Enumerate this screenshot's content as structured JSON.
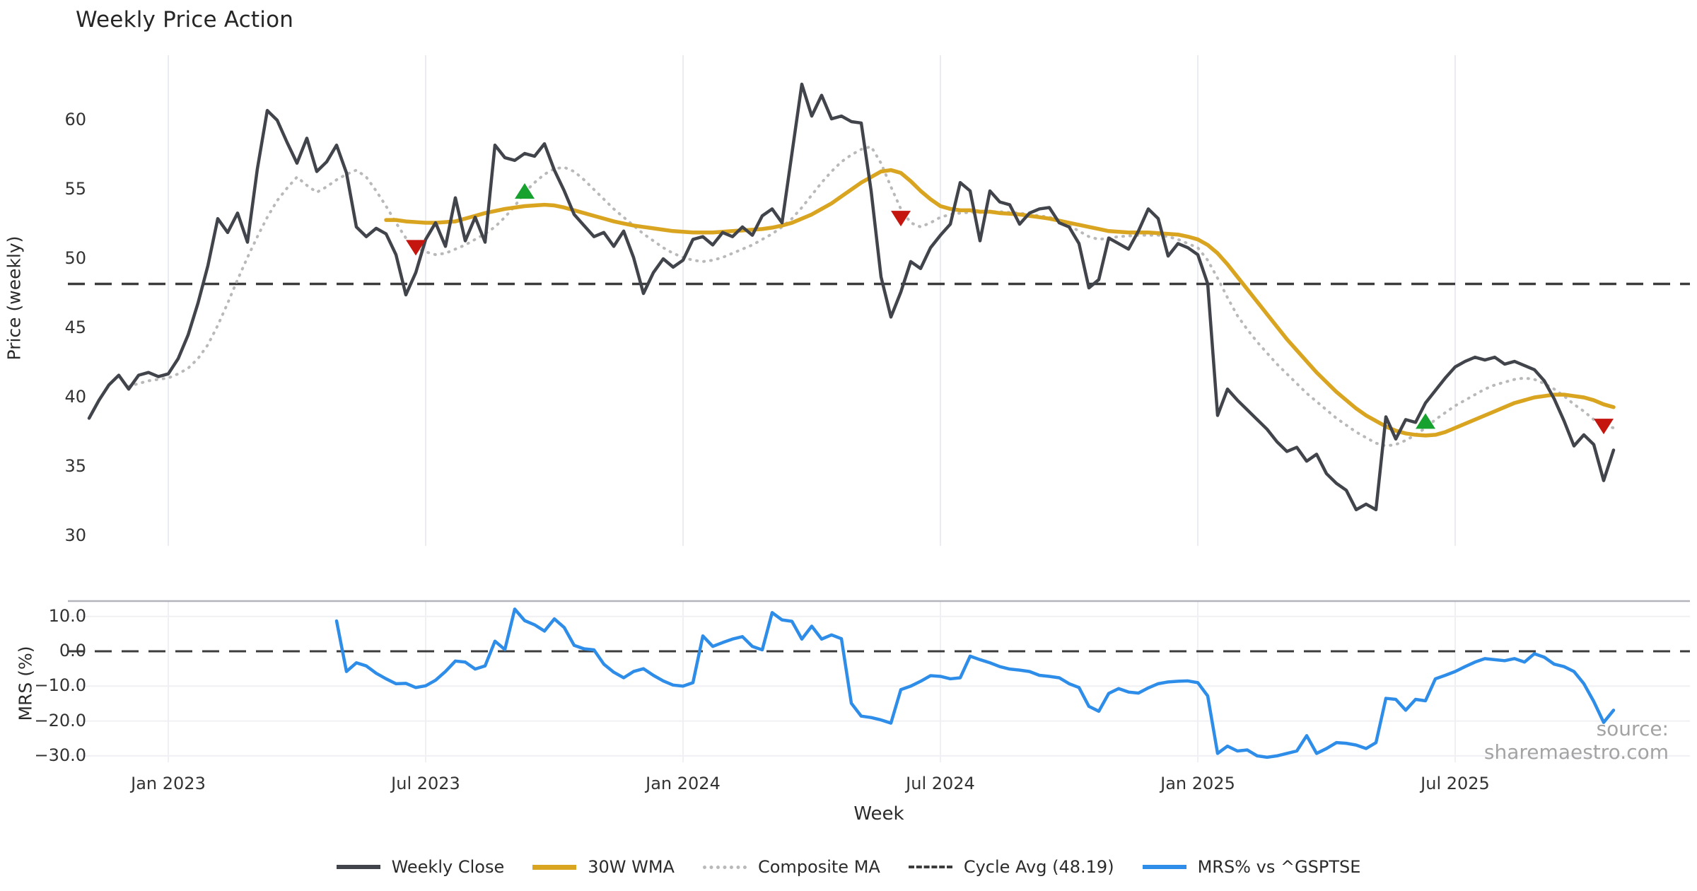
{
  "title": "Weekly Price Action",
  "source_text": "source: sharemaestro.com",
  "colors": {
    "weekly_close": "#41444a",
    "wma30": "#d9a521",
    "composite": "#b9b9b9",
    "cycle_avg": "#3c3c3c",
    "mrs": "#2d8de8",
    "buy_marker": "#17a12e",
    "sell_marker": "#c4150f",
    "grid_vertical": "#ebebf2",
    "grid_horizontal_lower": "#f0f0f4",
    "lower_top_spine": "#b4b4bc",
    "text": "#2b2b2b"
  },
  "legend": {
    "items": [
      {
        "label": "Weekly Close",
        "swatch": "solid-dark"
      },
      {
        "label": "30W WMA",
        "swatch": "solid-gold"
      },
      {
        "label": "Composite MA",
        "swatch": "dotted-gray"
      },
      {
        "label": "Cycle Avg (48.19)",
        "swatch": "dashed-dark"
      },
      {
        "label": "MRS% vs ^GSPTSE",
        "swatch": "solid-blue"
      }
    ]
  },
  "chart_data": [
    {
      "type": "line",
      "panel": "price",
      "title": "Weekly Price Action",
      "xlabel": "Week",
      "ylabel": "Price (weekly)",
      "x_unit": "week_index_from_2022-11-07",
      "ylim": [
        29,
        65
      ],
      "yticks": [
        {
          "v": 30,
          "label": "30"
        },
        {
          "v": 35,
          "label": "35"
        },
        {
          "v": 40,
          "label": "40"
        },
        {
          "v": 45,
          "label": "45"
        },
        {
          "v": 50,
          "label": "50"
        },
        {
          "v": 55,
          "label": "55"
        },
        {
          "v": 60,
          "label": "60"
        }
      ],
      "x_ticks": [
        {
          "week": 8,
          "label": "Jan 2023"
        },
        {
          "week": 34,
          "label": "Jul 2023"
        },
        {
          "week": 60,
          "label": "Jan 2024"
        },
        {
          "week": 86,
          "label": "Jul 2024"
        },
        {
          "week": 112,
          "label": "Jan 2025"
        },
        {
          "week": 138,
          "label": "Jul 2025"
        }
      ],
      "cycle_avg": 48.19,
      "series": [
        {
          "name": "Weekly Close",
          "start_week": 0,
          "values": [
            38.5,
            39.8,
            40.9,
            41.6,
            40.6,
            41.6,
            41.8,
            41.5,
            41.7,
            42.8,
            44.5,
            46.8,
            49.5,
            52.9,
            51.9,
            53.3,
            51.2,
            56.5,
            60.7,
            60.0,
            58.4,
            56.9,
            58.7,
            56.3,
            57.0,
            58.2,
            56.2,
            52.3,
            51.6,
            52.2,
            51.8,
            50.3,
            47.4,
            49.0,
            51.4,
            52.6,
            50.9,
            54.4,
            51.3,
            53.0,
            51.2,
            58.2,
            57.3,
            57.1,
            57.6,
            57.4,
            58.3,
            56.4,
            54.9,
            53.2,
            52.4,
            51.6,
            51.9,
            50.9,
            52.0,
            50.1,
            47.5,
            49.0,
            50.0,
            49.4,
            49.9,
            51.4,
            51.6,
            51.0,
            51.9,
            51.6,
            52.3,
            51.7,
            53.1,
            53.6,
            52.6,
            57.6,
            62.6,
            60.3,
            61.8,
            60.1,
            60.3,
            59.9,
            59.8,
            54.9,
            48.7,
            45.8,
            47.6,
            49.8,
            49.3,
            50.8,
            51.7,
            52.5,
            55.5,
            54.9,
            51.3,
            54.9,
            54.1,
            53.9,
            52.5,
            53.3,
            53.6,
            53.7,
            52.6,
            52.3,
            51.1,
            47.9,
            48.5,
            51.5,
            51.1,
            50.7,
            52.0,
            53.6,
            52.9,
            50.2,
            51.1,
            50.8,
            50.3,
            48.2,
            38.7,
            40.6,
            39.8,
            39.1,
            38.4,
            37.7,
            36.8,
            36.1,
            36.4,
            35.4,
            35.9,
            34.5,
            33.8,
            33.3,
            31.9,
            32.3,
            31.9,
            38.6,
            37.0,
            38.4,
            38.2,
            39.6,
            40.5,
            41.4,
            42.2,
            42.6,
            42.9,
            42.7,
            42.9,
            42.4,
            42.6,
            42.3,
            42.0,
            41.2,
            39.9,
            38.3,
            36.5,
            37.3,
            36.6,
            34.0,
            36.2
          ]
        },
        {
          "name": "30W WMA",
          "start_week": 30,
          "values": [
            52.8,
            52.8,
            52.7,
            52.65,
            52.6,
            52.6,
            52.65,
            52.7,
            52.9,
            53.1,
            53.3,
            53.45,
            53.6,
            53.7,
            53.8,
            53.85,
            53.9,
            53.85,
            53.7,
            53.5,
            53.3,
            53.1,
            52.9,
            52.7,
            52.55,
            52.4,
            52.3,
            52.2,
            52.1,
            52.0,
            51.95,
            51.9,
            51.9,
            51.9,
            51.95,
            52.0,
            52.05,
            52.1,
            52.15,
            52.25,
            52.4,
            52.6,
            52.9,
            53.2,
            53.6,
            54.0,
            54.5,
            55.0,
            55.5,
            55.9,
            56.3,
            56.4,
            56.2,
            55.6,
            54.9,
            54.3,
            53.8,
            53.6,
            53.5,
            53.5,
            53.4,
            53.4,
            53.3,
            53.25,
            53.2,
            53.1,
            53.0,
            52.9,
            52.75,
            52.6,
            52.45,
            52.3,
            52.15,
            52.0,
            51.95,
            51.9,
            51.9,
            51.9,
            51.85,
            51.8,
            51.75,
            51.6,
            51.4,
            51.0,
            50.4,
            49.6,
            48.7,
            47.8,
            46.9,
            46.0,
            45.1,
            44.2,
            43.4,
            42.6,
            41.8,
            41.1,
            40.4,
            39.8,
            39.2,
            38.7,
            38.3,
            37.9,
            37.6,
            37.4,
            37.3,
            37.25,
            37.3,
            37.5,
            37.8,
            38.1,
            38.4,
            38.7,
            39.0,
            39.3,
            39.6,
            39.8,
            40.0,
            40.1,
            40.2,
            40.2,
            40.1,
            40.0,
            39.8,
            39.5,
            39.3
          ]
        },
        {
          "name": "Composite MA",
          "start_week": 4,
          "values": [
            40.8,
            41.0,
            41.2,
            41.3,
            41.4,
            41.7,
            42.1,
            42.8,
            43.8,
            45.2,
            46.8,
            48.5,
            50.1,
            51.6,
            53.0,
            54.2,
            55.1,
            55.9,
            55.3,
            54.8,
            55.2,
            55.7,
            56.1,
            56.4,
            55.9,
            54.9,
            53.8,
            52.6,
            51.5,
            50.8,
            50.5,
            50.3,
            50.4,
            50.7,
            51.0,
            51.4,
            51.8,
            52.3,
            53.0,
            53.8,
            54.8,
            55.5,
            56.1,
            56.5,
            56.6,
            56.3,
            55.7,
            55.0,
            54.3,
            53.6,
            53.0,
            52.4,
            51.8,
            51.3,
            50.8,
            50.4,
            50.1,
            49.9,
            49.8,
            49.9,
            50.1,
            50.4,
            50.7,
            51.0,
            51.4,
            51.8,
            52.3,
            52.9,
            53.7,
            54.6,
            55.5,
            56.3,
            57.0,
            57.5,
            57.9,
            58.1,
            56.9,
            55.2,
            53.6,
            52.6,
            52.3,
            52.6,
            53.0,
            53.2,
            53.3,
            53.35,
            53.35,
            53.4,
            53.4,
            53.35,
            53.3,
            53.2,
            53.1,
            53.0,
            52.8,
            52.4,
            52.0,
            51.6,
            51.4,
            51.5,
            51.6,
            51.65,
            51.7,
            51.7,
            51.7,
            51.6,
            51.4,
            51.1,
            50.8,
            49.9,
            48.6,
            47.2,
            45.9,
            44.9,
            44.0,
            43.2,
            42.4,
            41.7,
            41.0,
            40.3,
            39.7,
            39.1,
            38.5,
            38.0,
            37.5,
            37.1,
            36.7,
            36.5,
            36.6,
            36.9,
            37.3,
            37.8,
            38.4,
            38.9,
            39.4,
            39.8,
            40.2,
            40.6,
            40.9,
            41.1,
            41.3,
            41.4,
            41.3,
            41.0,
            40.6,
            40.1,
            39.5,
            39.0,
            38.4,
            38.0,
            37.8
          ]
        }
      ],
      "markers": [
        {
          "week": 33,
          "value": 50.8,
          "type": "sell"
        },
        {
          "week": 44,
          "value": 54.9,
          "type": "buy"
        },
        {
          "week": 82,
          "value": 52.9,
          "type": "sell"
        },
        {
          "week": 135,
          "value": 38.3,
          "type": "buy"
        },
        {
          "week": 153,
          "value": 37.9,
          "type": "sell"
        }
      ]
    },
    {
      "type": "line",
      "panel": "mrs",
      "ylabel": "MRS (%)",
      "ylim": [
        -32,
        14.5
      ],
      "zero_line": 0.0,
      "yticks": [
        {
          "v": 10,
          "label": "10.0"
        },
        {
          "v": 0,
          "label": "0.0"
        },
        {
          "v": -10,
          "label": "−10.0"
        },
        {
          "v": -20,
          "label": "−20.0"
        },
        {
          "v": -30,
          "label": "−30.0"
        }
      ],
      "series": [
        {
          "name": "MRS% vs ^GSPTSE",
          "start_week": 25,
          "values": [
            8.7,
            -5.8,
            -3.3,
            -4.2,
            -6.3,
            -7.9,
            -9.3,
            -9.2,
            -10.4,
            -9.9,
            -8.3,
            -5.8,
            -2.8,
            -3.1,
            -5.1,
            -4.2,
            2.9,
            0.5,
            12.1,
            8.8,
            7.6,
            5.8,
            9.3,
            6.8,
            1.7,
            0.7,
            0.4,
            -3.7,
            -6.0,
            -7.6,
            -5.8,
            -5.0,
            -6.9,
            -8.5,
            -9.7,
            -10.0,
            -9.0,
            4.4,
            1.4,
            2.5,
            3.5,
            4.2,
            1.4,
            0.4,
            11.1,
            9.0,
            8.6,
            3.5,
            7.2,
            3.5,
            4.7,
            3.6,
            -14.9,
            -18.6,
            -19.0,
            -19.7,
            -20.6,
            -11.0,
            -10.0,
            -8.6,
            -7.0,
            -7.2,
            -7.9,
            -7.6,
            -1.4,
            -2.4,
            -3.3,
            -4.4,
            -5.1,
            -5.4,
            -5.8,
            -6.9,
            -7.2,
            -7.6,
            -9.3,
            -10.4,
            -15.8,
            -17.2,
            -12.1,
            -10.7,
            -11.7,
            -12.0,
            -10.5,
            -9.3,
            -8.8,
            -8.6,
            -8.5,
            -9.0,
            -12.8,
            -29.3,
            -27.2,
            -28.6,
            -28.3,
            -30.0,
            -30.4,
            -30.0,
            -29.3,
            -28.6,
            -24.2,
            -29.3,
            -27.9,
            -26.2,
            -26.4,
            -26.9,
            -27.9,
            -26.2,
            -13.5,
            -13.8,
            -16.9,
            -13.8,
            -14.2,
            -7.9,
            -6.9,
            -5.8,
            -4.4,
            -3.1,
            -2.1,
            -2.4,
            -2.7,
            -2.1,
            -3.1,
            -0.7,
            -1.7,
            -3.7,
            -4.4,
            -5.8,
            -9.3,
            -14.4,
            -20.4,
            -16.9
          ]
        }
      ]
    }
  ],
  "axis_labels": {
    "price_y": "Price (weekly)",
    "mrs_y": "MRS (%)",
    "x": "Week"
  }
}
